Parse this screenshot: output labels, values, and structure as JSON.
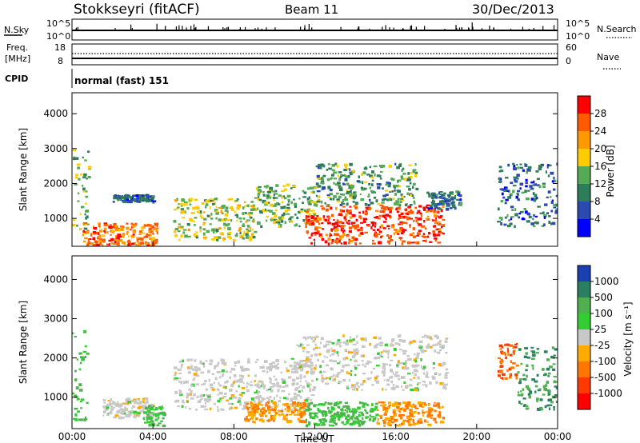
{
  "header": {
    "station": "Stokkseyri (fitACF)",
    "beam": "Beam 11",
    "date": "30/Dec/2013"
  },
  "left_labels": {
    "nsky": "N.Sky",
    "freq": "Freq.",
    "freq_unit": "[MHz]",
    "cpid": "CPID"
  },
  "right_labels": {
    "nsearch": "N.Search",
    "nave": "Nave"
  },
  "cpid_value": "normal (fast) 151",
  "chart_data": [
    {
      "type": "line",
      "panel": "noise",
      "yleft_ticks": [
        "10^5",
        "10^0"
      ],
      "yright_ticks": [
        "10^5",
        "10^0"
      ],
      "note": "sky noise trace near baseline with sparse spikes"
    },
    {
      "type": "line",
      "panel": "frequency",
      "yleft_ticks": [
        "18",
        "8"
      ],
      "yright_ticks": [
        "60",
        "0"
      ],
      "freq_mhz": 10,
      "nave": 28
    },
    {
      "type": "heatmap",
      "panel": "power",
      "xlabel": "",
      "ylabel": "Slant Range [km]",
      "xlim": [
        0,
        24
      ],
      "ylim": [
        200,
        4600
      ],
      "y_ticks": [
        "4000",
        "3000",
        "2000",
        "1000"
      ],
      "colorbar": {
        "label": "Power [dB]",
        "ticks": [
          "28",
          "24",
          "20",
          "16",
          "12",
          "8",
          "4"
        ],
        "colors": [
          "#ff0000",
          "#ff5a00",
          "#ff9900",
          "#ffcc00",
          "#55aa55",
          "#2e7d5a",
          "#2a4ab0",
          "#0000ff"
        ]
      },
      "blobs": [
        {
          "t0": 0.0,
          "t1": 0.8,
          "r0": 600,
          "r1": 3000,
          "level": 12
        },
        {
          "t0": 0.5,
          "t1": 4.2,
          "r0": 250,
          "r1": 900,
          "level": 22
        },
        {
          "t0": 2.0,
          "t1": 4.0,
          "r0": 1500,
          "r1": 1700,
          "level": 6
        },
        {
          "t0": 5.0,
          "t1": 9.0,
          "r0": 400,
          "r1": 1600,
          "level": 14
        },
        {
          "t0": 9.0,
          "t1": 12.0,
          "r0": 800,
          "r1": 2000,
          "level": 12
        },
        {
          "t0": 11.5,
          "t1": 18.3,
          "r0": 300,
          "r1": 1400,
          "level": 26
        },
        {
          "t0": 12.0,
          "t1": 17.0,
          "r0": 1400,
          "r1": 2600,
          "level": 10
        },
        {
          "t0": 17.5,
          "t1": 19.2,
          "r0": 1300,
          "r1": 1800,
          "level": 6
        },
        {
          "t0": 21.0,
          "t1": 24.0,
          "r0": 800,
          "r1": 2600,
          "level": 6
        }
      ]
    },
    {
      "type": "heatmap",
      "panel": "velocity",
      "xlabel": "Time UT",
      "ylabel": "Slant Range [km]",
      "xlim": [
        0,
        24
      ],
      "ylim": [
        200,
        4600
      ],
      "x_ticks": [
        "00:00",
        "04:00",
        "08:00",
        "12:00",
        "16:00",
        "20:00",
        "00:00"
      ],
      "y_ticks": [
        "4000",
        "3000",
        "2000",
        "1000"
      ],
      "colorbar": {
        "label": "Velocity [m s⁻¹]",
        "ticks": [
          "1000",
          "500",
          "100",
          "25",
          "-25",
          "-100",
          "-500",
          "-1000"
        ],
        "colors": [
          "#1a3fb0",
          "#2a7f62",
          "#4fb04f",
          "#33cc33",
          "#c8c8c8",
          "#ffaa00",
          "#ff7700",
          "#ff3a00",
          "#ff0000"
        ]
      },
      "blobs": [
        {
          "t0": 0.0,
          "t1": 0.7,
          "r0": 400,
          "r1": 2800,
          "v": 100
        },
        {
          "t0": 1.5,
          "t1": 4.0,
          "r0": 500,
          "r1": 1000,
          "v": 0
        },
        {
          "t0": 3.5,
          "t1": 4.5,
          "r0": 300,
          "r1": 800,
          "v": 100
        },
        {
          "t0": 5.0,
          "t1": 12.0,
          "r0": 700,
          "r1": 2000,
          "v": 0
        },
        {
          "t0": 8.5,
          "t1": 11.5,
          "r0": 400,
          "r1": 900,
          "v": -100
        },
        {
          "t0": 11.0,
          "t1": 18.5,
          "r0": 1200,
          "r1": 2600,
          "v": 0
        },
        {
          "t0": 11.5,
          "t1": 15.0,
          "r0": 300,
          "r1": 900,
          "v": 100
        },
        {
          "t0": 15.0,
          "t1": 18.3,
          "r0": 300,
          "r1": 900,
          "v": -100
        },
        {
          "t0": 21.0,
          "t1": 22.0,
          "r0": 1500,
          "r1": 2400,
          "v": -500
        },
        {
          "t0": 22.0,
          "t1": 24.0,
          "r0": 700,
          "r1": 2300,
          "v": 500
        }
      ]
    }
  ]
}
